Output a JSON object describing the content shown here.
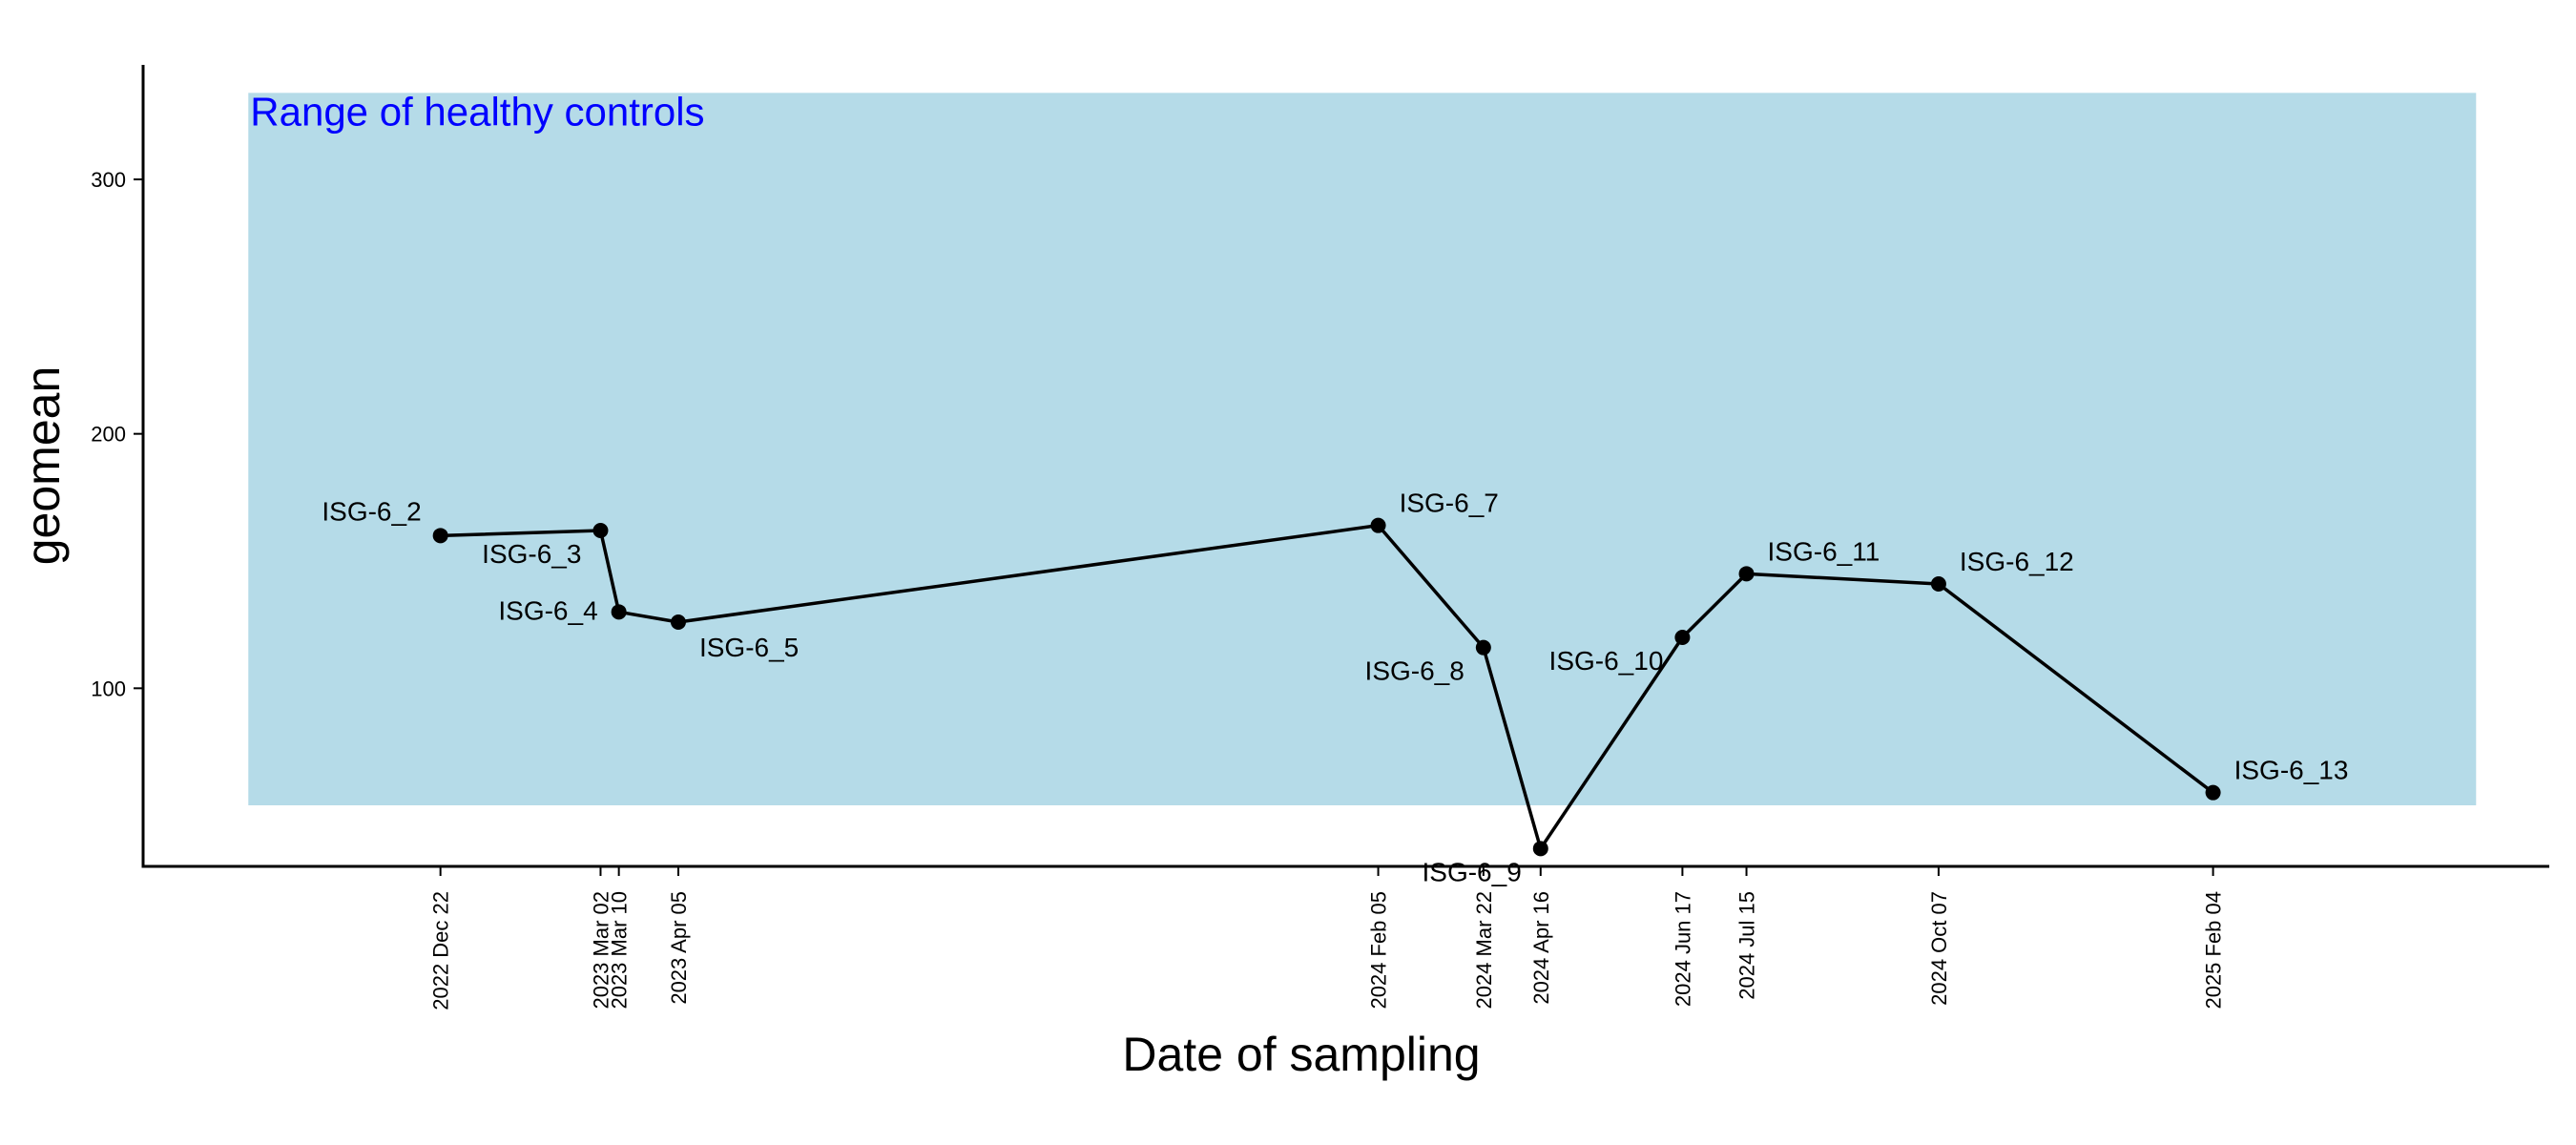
{
  "chart_data": {
    "type": "line",
    "xlabel": "Date of sampling",
    "ylabel": "geomean",
    "ylim": [
      30,
      345
    ],
    "xlim": [
      "2022-08-14",
      "2025-07-01"
    ],
    "yticks": [
      100,
      200,
      300
    ],
    "grid": false,
    "band": {
      "label": "Range of healthy controls",
      "x_from": "2022-09-29",
      "x_to": "2025-05-30",
      "y_from": 54,
      "y_to": 334,
      "fill": "#b5dbe8",
      "label_color": "#0000ff"
    },
    "series": [
      {
        "color": "#000000",
        "points": [
          {
            "date": "2022-12-22",
            "tick": "2022 Dec 22",
            "label": "ISG-6_2",
            "y": 160,
            "label_pos": "left-above"
          },
          {
            "date": "2023-03-02",
            "tick": "2023 Mar 02",
            "label": "ISG-6_3",
            "y": 162,
            "label_pos": "left-below"
          },
          {
            "date": "2023-03-10",
            "tick": "2023 Mar 10",
            "label": "ISG-6_4",
            "y": 130,
            "label_pos": "left"
          },
          {
            "date": "2023-04-05",
            "tick": "2023 Apr 05",
            "label": "ISG-6_5",
            "y": 126,
            "label_pos": "right-below"
          },
          {
            "date": "2024-02-05",
            "tick": "2024 Feb 05",
            "label": "ISG-6_7",
            "y": 164,
            "label_pos": "right-above"
          },
          {
            "date": "2024-03-22",
            "tick": "2024 Mar 22",
            "label": "ISG-6_8",
            "y": 116,
            "label_pos": "left-below"
          },
          {
            "date": "2024-04-16",
            "tick": "2024 Apr 16",
            "label": "ISG-6_9",
            "y": 37,
            "label_pos": "left-below"
          },
          {
            "date": "2024-06-17",
            "tick": "2024 Jun 17",
            "label": "ISG-6_10",
            "y": 120,
            "label_pos": "left-below"
          },
          {
            "date": "2024-07-15",
            "tick": "2024 Jul 15",
            "label": "ISG-6_11",
            "y": 145,
            "label_pos": "right-above"
          },
          {
            "date": "2024-10-07",
            "tick": "2024 Oct 07",
            "label": "ISG-6_12",
            "y": 141,
            "label_pos": "right-above"
          },
          {
            "date": "2025-02-04",
            "tick": "2025 Feb 04",
            "label": "ISG-6_13",
            "y": 59,
            "label_pos": "right-above"
          }
        ]
      }
    ]
  }
}
